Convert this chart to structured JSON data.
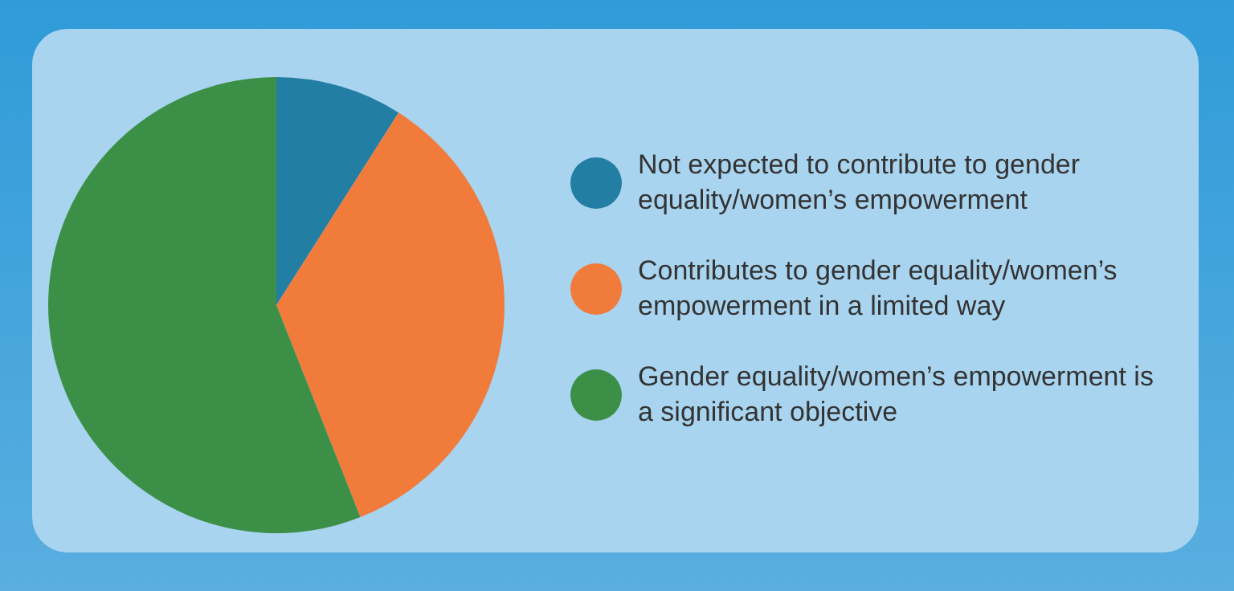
{
  "chart_data": {
    "type": "pie",
    "categories": [
      "Not expected to contribute to gender equality/women’s empowerment",
      "Contributes to gender equality/women’s empowerment in a limited way",
      "Gender equality/women’s empowerment is a significant objective"
    ],
    "values": [
      9,
      35,
      56
    ],
    "colors": [
      "#237ea3",
      "#f07b3a",
      "#3b8f47"
    ],
    "legend": "right"
  }
}
